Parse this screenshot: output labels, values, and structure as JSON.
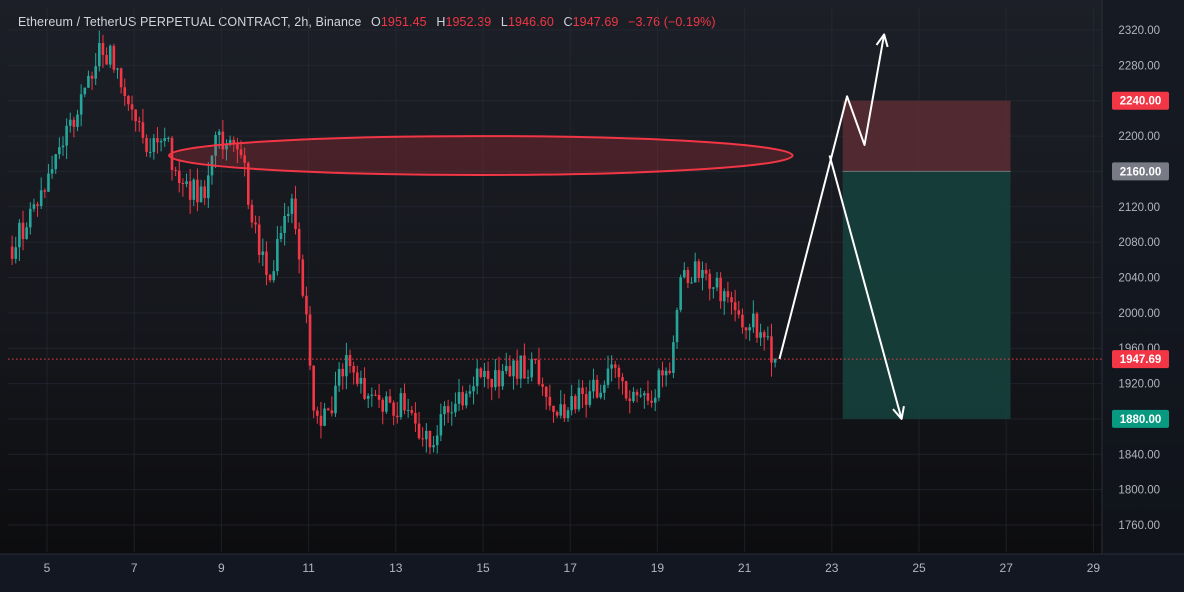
{
  "header": {
    "symbol": "Ethereum / TetherUS PERPETUAL CONTRACT, 2h, Binance",
    "o_label": "O",
    "o_value": "1951.45",
    "h_label": "H",
    "h_value": "1952.39",
    "l_label": "L",
    "l_value": "1946.60",
    "c_label": "C",
    "c_value": "1947.69",
    "change": "−3.76 (−0.19%)"
  },
  "colors": {
    "up": "#26a69a",
    "down": "#f23645",
    "stop_zone": "#5c2b33",
    "target_zone": "#16403c",
    "ellipse": "#f23645",
    "arrows": "#ffffff"
  },
  "chart_data": {
    "type": "candlestick",
    "title": "Ethereum / TetherUS PERPETUAL CONTRACT, 2h, Binance",
    "ylim": [
      1720,
      2340
    ],
    "xlim": [
      4.2,
      29.8
    ],
    "price_ticks": [
      "1760.00",
      "1800.00",
      "1840.00",
      "1880.00",
      "1920.00",
      "1960.00",
      "2000.00",
      "2040.00",
      "2080.00",
      "2120.00",
      "2160.00",
      "2200.00",
      "2240.00",
      "2280.00",
      "2320.00"
    ],
    "date_ticks": [
      "5",
      "7",
      "9",
      "11",
      "13",
      "15",
      "17",
      "19",
      "21",
      "23",
      "25",
      "27",
      "29"
    ],
    "current_price": 1947.69,
    "current_price_label": "1947.69",
    "price_path": [
      [
        4.2,
        2075
      ],
      [
        4.6,
        2110
      ],
      [
        5.0,
        2150
      ],
      [
        5.3,
        2190
      ],
      [
        5.6,
        2220
      ],
      [
        5.9,
        2255
      ],
      [
        6.2,
        2295
      ],
      [
        6.5,
        2290
      ],
      [
        6.8,
        2240
      ],
      [
        7.1,
        2205
      ],
      [
        7.4,
        2190
      ],
      [
        7.7,
        2200
      ],
      [
        8.0,
        2150
      ],
      [
        8.3,
        2140
      ],
      [
        8.6,
        2135
      ],
      [
        8.9,
        2195
      ],
      [
        9.2,
        2190
      ],
      [
        9.5,
        2165
      ],
      [
        9.8,
        2090
      ],
      [
        10.1,
        2040
      ],
      [
        10.4,
        2090
      ],
      [
        10.6,
        2130
      ],
      [
        10.8,
        2060
      ],
      [
        10.95,
        1985
      ],
      [
        11.1,
        1905
      ],
      [
        11.3,
        1875
      ],
      [
        11.5,
        1885
      ],
      [
        11.7,
        1925
      ],
      [
        11.9,
        1950
      ],
      [
        12.1,
        1925
      ],
      [
        12.3,
        1900
      ],
      [
        12.6,
        1905
      ],
      [
        12.9,
        1890
      ],
      [
        13.2,
        1900
      ],
      [
        13.5,
        1875
      ],
      [
        13.8,
        1845
      ],
      [
        14.1,
        1880
      ],
      [
        14.4,
        1900
      ],
      [
        14.7,
        1920
      ],
      [
        15.0,
        1930
      ],
      [
        15.3,
        1925
      ],
      [
        15.6,
        1935
      ],
      [
        15.9,
        1940
      ],
      [
        16.2,
        1935
      ],
      [
        16.5,
        1910
      ],
      [
        16.8,
        1885
      ],
      [
        17.1,
        1900
      ],
      [
        17.4,
        1905
      ],
      [
        17.7,
        1920
      ],
      [
        18.0,
        1935
      ],
      [
        18.3,
        1900
      ],
      [
        18.6,
        1895
      ],
      [
        18.9,
        1910
      ],
      [
        19.1,
        1935
      ],
      [
        19.35,
        1945
      ],
      [
        19.5,
        2030
      ],
      [
        19.8,
        2045
      ],
      [
        20.1,
        2050
      ],
      [
        20.3,
        2030
      ],
      [
        20.6,
        2015
      ],
      [
        20.9,
        1985
      ],
      [
        21.2,
        1990
      ],
      [
        21.5,
        1965
      ],
      [
        21.75,
        1945
      ]
    ],
    "trade_setup": {
      "stop_top": 2240,
      "entry": 2160,
      "target": 1880,
      "x_start": 23.25,
      "x_end": 27.1,
      "stop_label": "2240.00",
      "entry_label": "2160.00",
      "target_label": "1880.00"
    },
    "resistance_ellipse": {
      "cx": 14.95,
      "cy": 2178,
      "rx": 7.15,
      "ry": 22
    },
    "projection_up": [
      [
        21.8,
        1948
      ],
      [
        23.35,
        2245
      ],
      [
        23.75,
        2190
      ],
      [
        24.2,
        2315
      ]
    ],
    "projection_down": [
      [
        22.95,
        2178
      ],
      [
        24.6,
        1880
      ]
    ]
  }
}
